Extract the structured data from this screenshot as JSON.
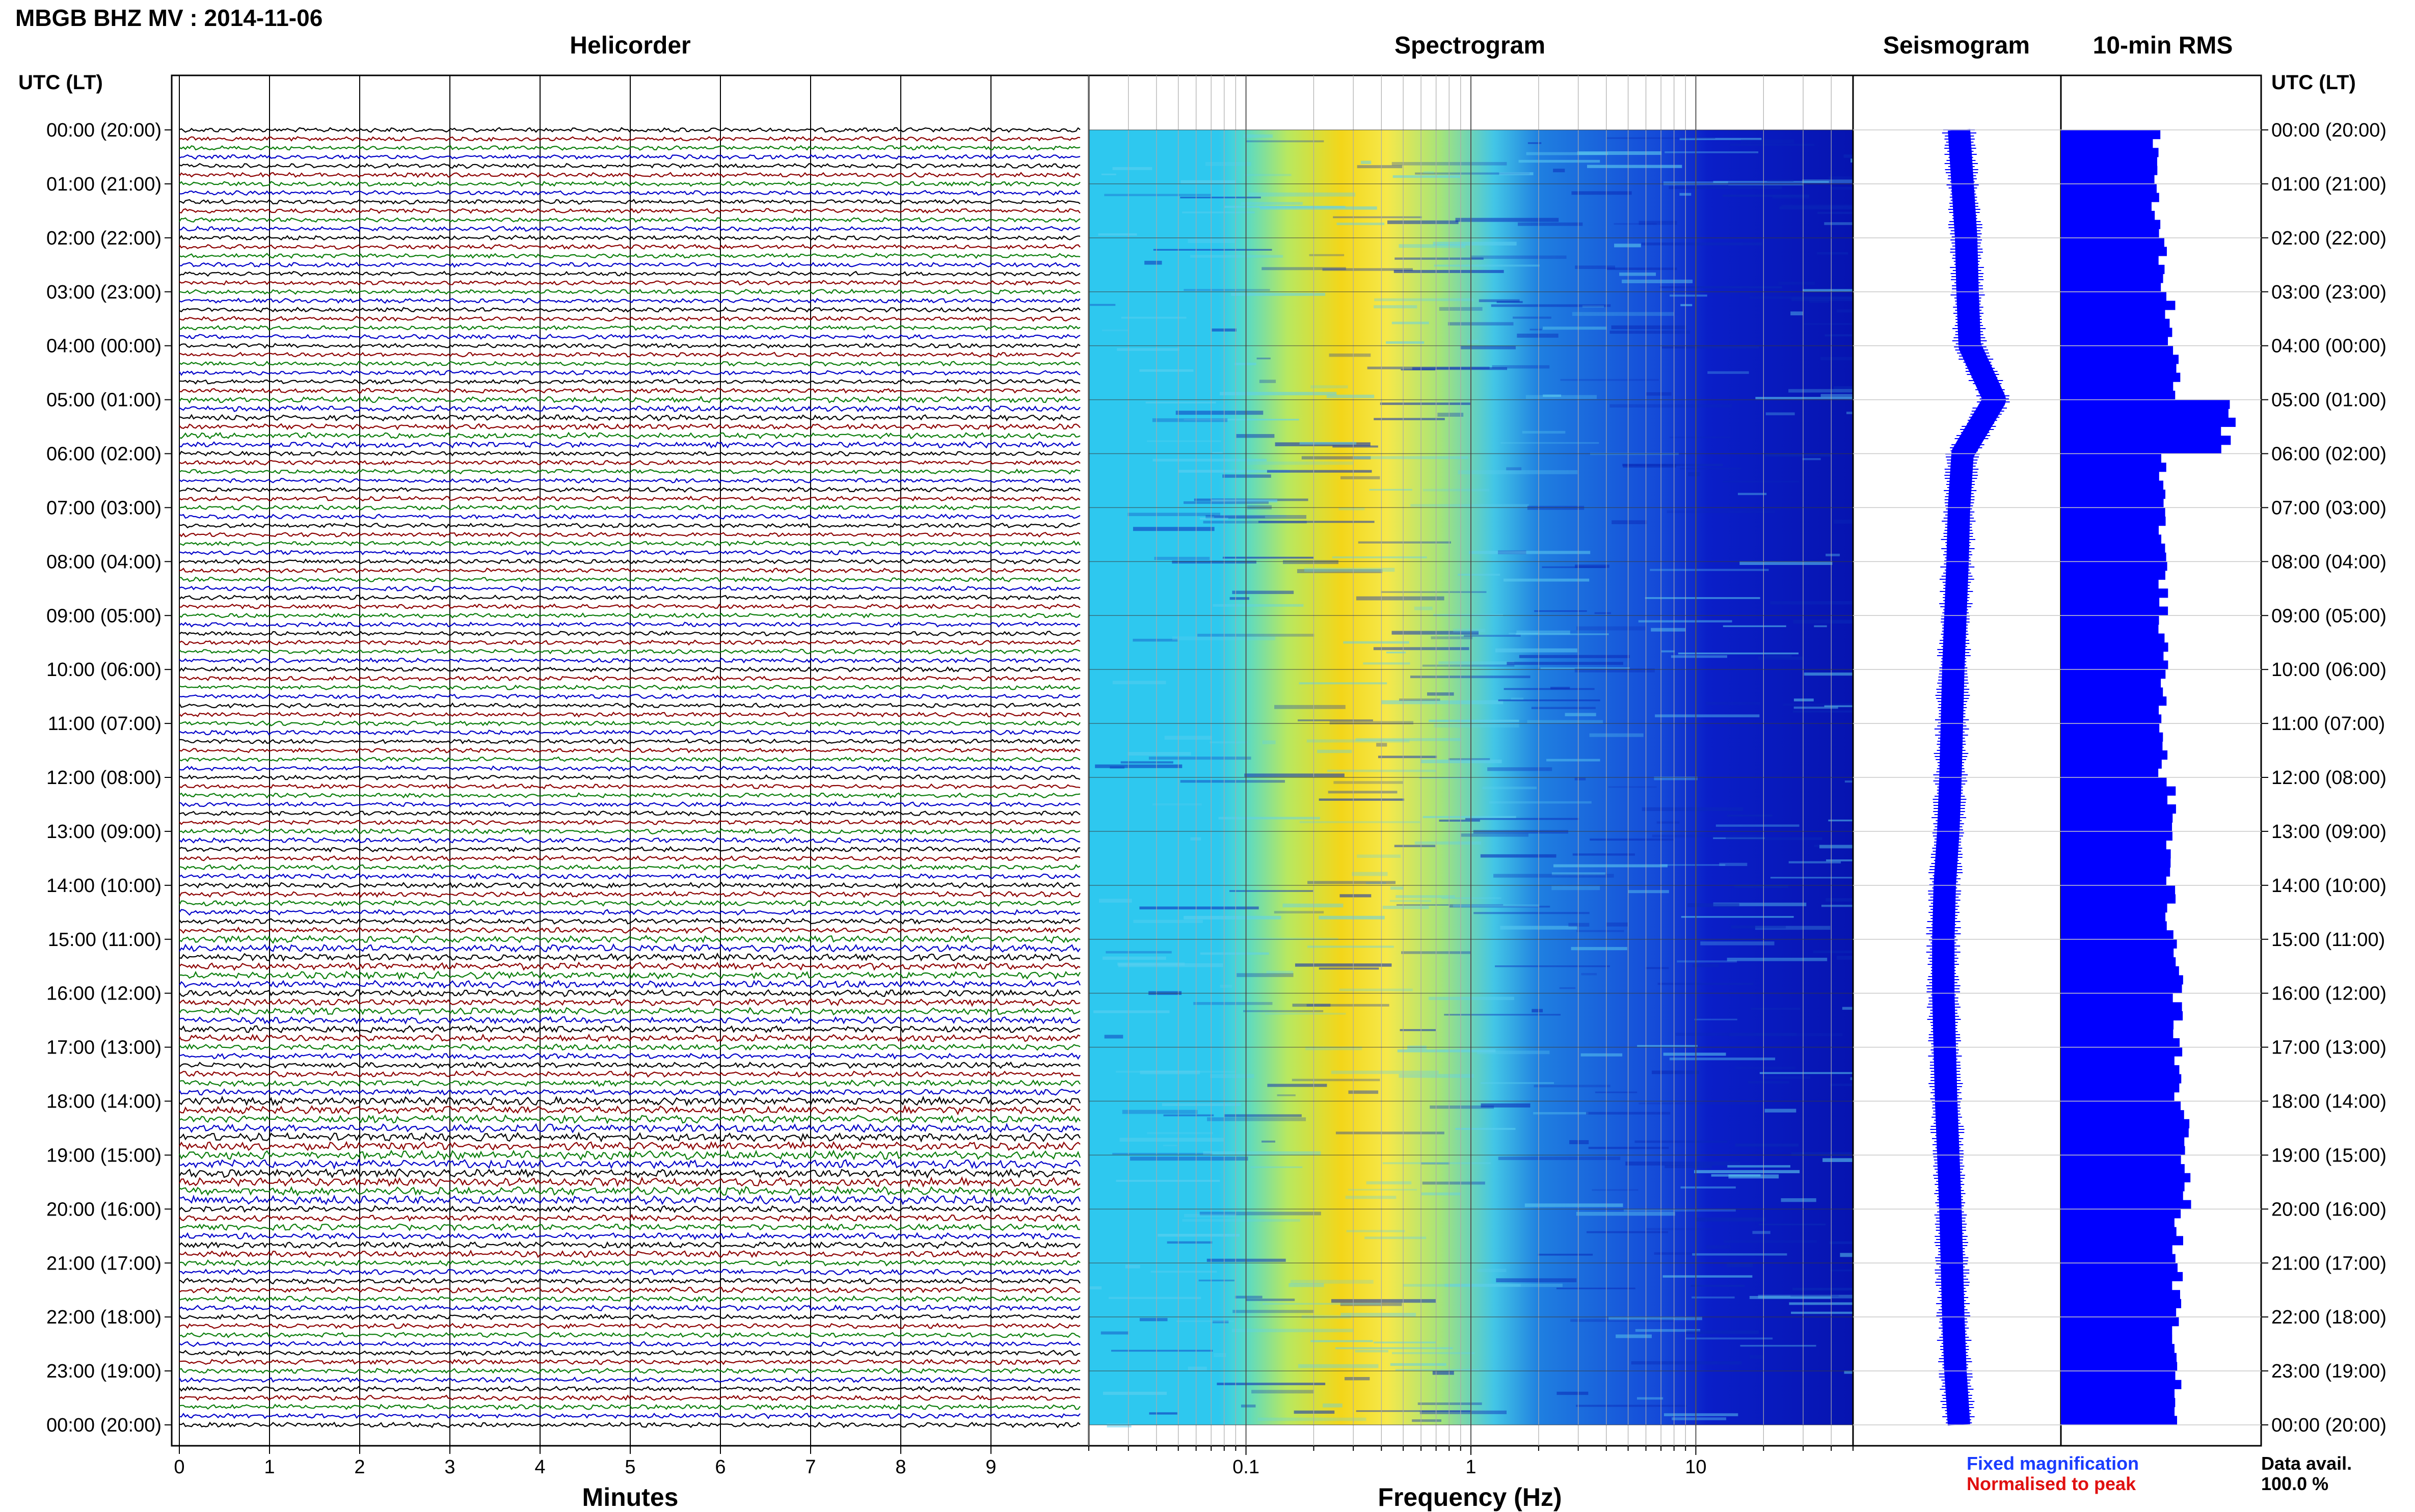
{
  "header": {
    "title": "MBGB BHZ MV : 2014-11-06"
  },
  "panels": {
    "helicorder": "Helicorder",
    "spectrogram": "Spectrogram",
    "seismogram": "Seismogram",
    "rms": "10-min RMS"
  },
  "axes": {
    "utc_header_left": "UTC (LT)",
    "utc_header_right": "UTC (LT)",
    "minutes_label": "Minutes",
    "frequency_label": "Frequency (Hz)"
  },
  "legend": {
    "fixed": "Fixed magnification",
    "normalised": "Normalised to peak"
  },
  "availability": {
    "label": "Data avail.",
    "value": "100.0 %"
  },
  "colors": {
    "trace_cycle": [
      "#000000",
      "#8b0000",
      "#0b7d0b",
      "#0000c8"
    ],
    "seismogram": "#0000ff",
    "rms_bar": "#0000ff",
    "spectrogram_low": "#08108a",
    "spectrogram_high": "#ffd400"
  },
  "chart_data": [
    {
      "type": "line",
      "title": "Helicorder",
      "xlabel": "Minutes",
      "ylabel": "UTC (LT)",
      "x_ticks": [
        "0",
        "1",
        "2",
        "3",
        "4",
        "5",
        "6",
        "7",
        "8",
        "9"
      ],
      "xlim": [
        0,
        10
      ],
      "row_labels": [
        "00:00 (20:00)",
        "01:00 (21:00)",
        "02:00 (22:00)",
        "03:00 (23:00)",
        "04:00 (00:00)",
        "05:00 (01:00)",
        "06:00 (02:00)",
        "07:00 (03:00)",
        "08:00 (04:00)",
        "09:00 (05:00)",
        "10:00 (06:00)",
        "11:00 (07:00)",
        "12:00 (08:00)",
        "13:00 (09:00)",
        "14:00 (10:00)",
        "15:00 (11:00)",
        "16:00 (12:00)",
        "17:00 (13:00)",
        "18:00 (14:00)",
        "19:00 (15:00)",
        "20:00 (16:00)",
        "21:00 (17:00)",
        "22:00 (18:00)",
        "23:00 (19:00)",
        "00:00 (20:00)"
      ],
      "rows_per_hour": 6,
      "row_amplitude": [
        1.0,
        1.0,
        1.0,
        1.0,
        1.0,
        1.3,
        1.0,
        1.0,
        1.0,
        1.0,
        1.0,
        1.0,
        1.0,
        1.1,
        1.2,
        1.6,
        1.5,
        1.3,
        1.8,
        1.9,
        1.4,
        1.2,
        1.1,
        1.1
      ]
    },
    {
      "type": "heatmap",
      "title": "Spectrogram",
      "xlabel": "Frequency (Hz)",
      "x_scale": "log",
      "xlim": [
        0.02,
        50
      ],
      "x_ticks": [
        "0.1",
        "1",
        "10"
      ],
      "colormap": "jet",
      "note_bands_hz": [
        0.2,
        0.5
      ]
    },
    {
      "type": "line",
      "title": "Seismogram",
      "series": [
        {
          "name": "",
          "values": [
            0.0,
            0.05,
            0.1,
            0.12,
            0.15,
            0.5,
            0.05,
            0.0,
            -0.02,
            -0.05,
            -0.08,
            -0.1,
            -0.12,
            -0.15,
            -0.2,
            -0.22,
            -0.22,
            -0.2,
            -0.18,
            -0.15,
            -0.12,
            -0.1,
            -0.08,
            -0.05,
            0.0
          ]
        }
      ]
    },
    {
      "type": "bar",
      "title": "10-min RMS",
      "orientation": "horizontal",
      "values": [
        1.3,
        1.3,
        1.4,
        1.5,
        1.6,
        2.3,
        1.4,
        1.4,
        1.4,
        1.4,
        1.4,
        1.4,
        1.5,
        1.5,
        1.5,
        1.6,
        1.6,
        1.6,
        1.7,
        1.7,
        1.6,
        1.6,
        1.6,
        1.6
      ]
    }
  ]
}
